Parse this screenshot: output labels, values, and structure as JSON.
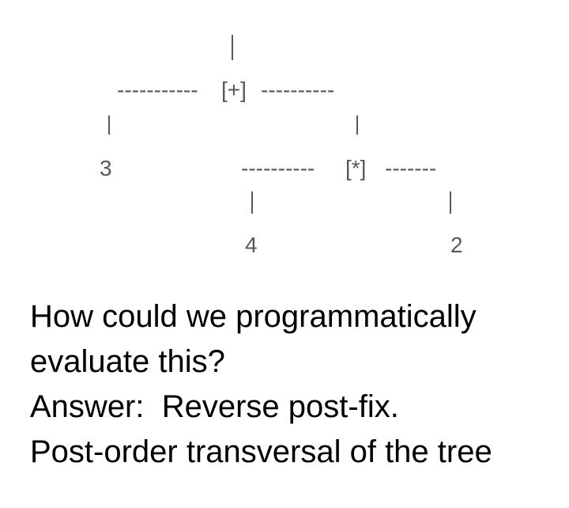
{
  "tree": {
    "root_dashes_left": "-----------",
    "root_operator": "[+]",
    "root_dashes_right": "----------",
    "left_leaf": "3",
    "inner_dashes_left": "----------",
    "inner_operator": "[*]",
    "inner_dashes_right": "-------",
    "inner_left_leaf": "4",
    "inner_right_leaf": "2"
  },
  "text": {
    "lines": [
      "How could we programmatically",
      "evaluate this?",
      "Answer:  Reverse post-fix.",
      "Post-order transversal of the tree"
    ]
  }
}
